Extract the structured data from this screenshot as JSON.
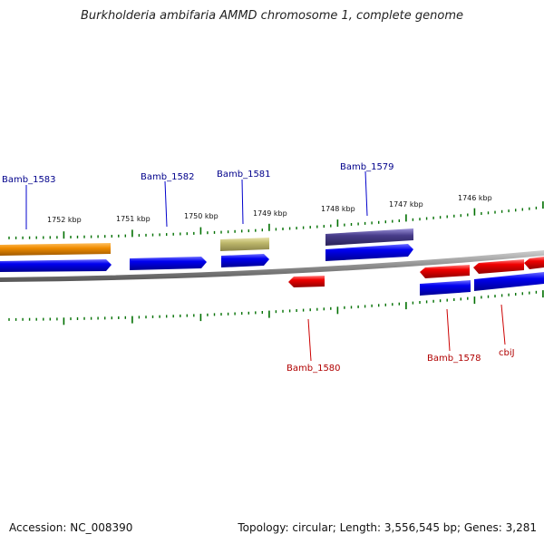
{
  "title": "Burkholderia ambifaria AMMD chromosome 1, complete genome",
  "footer": {
    "accession": "Accession: NC_008390",
    "summary": "Topology: circular; Length: 3,556,545 bp; Genes: 3,281"
  },
  "colors": {
    "plus_label": "#00008b",
    "minus_label": "#b00000",
    "gene_blue": "#0000e6",
    "gene_red": "#ee0000",
    "gene_orange": "#f08c00",
    "gene_khaki": "#bdb76b",
    "gene_slate": "#483d8b",
    "tick_green": "#007000",
    "backbone": "#8c8c8c"
  },
  "tick_labels": [
    "1752 kbp",
    "1751 kbp",
    "1750 kbp",
    "1749 kbp",
    "1748 kbp",
    "1747 kbp",
    "1746 kbp"
  ],
  "gene_labels": [
    {
      "name": "Bamb_1583",
      "strand": "plus"
    },
    {
      "name": "Bamb_1582",
      "strand": "plus"
    },
    {
      "name": "Bamb_1581",
      "strand": "plus"
    },
    {
      "name": "Bamb_1579",
      "strand": "plus"
    },
    {
      "name": "Bamb_1580",
      "strand": "minus"
    },
    {
      "name": "Bamb_1578",
      "strand": "minus"
    },
    {
      "name": "cbiJ",
      "strand": "minus"
    }
  ]
}
